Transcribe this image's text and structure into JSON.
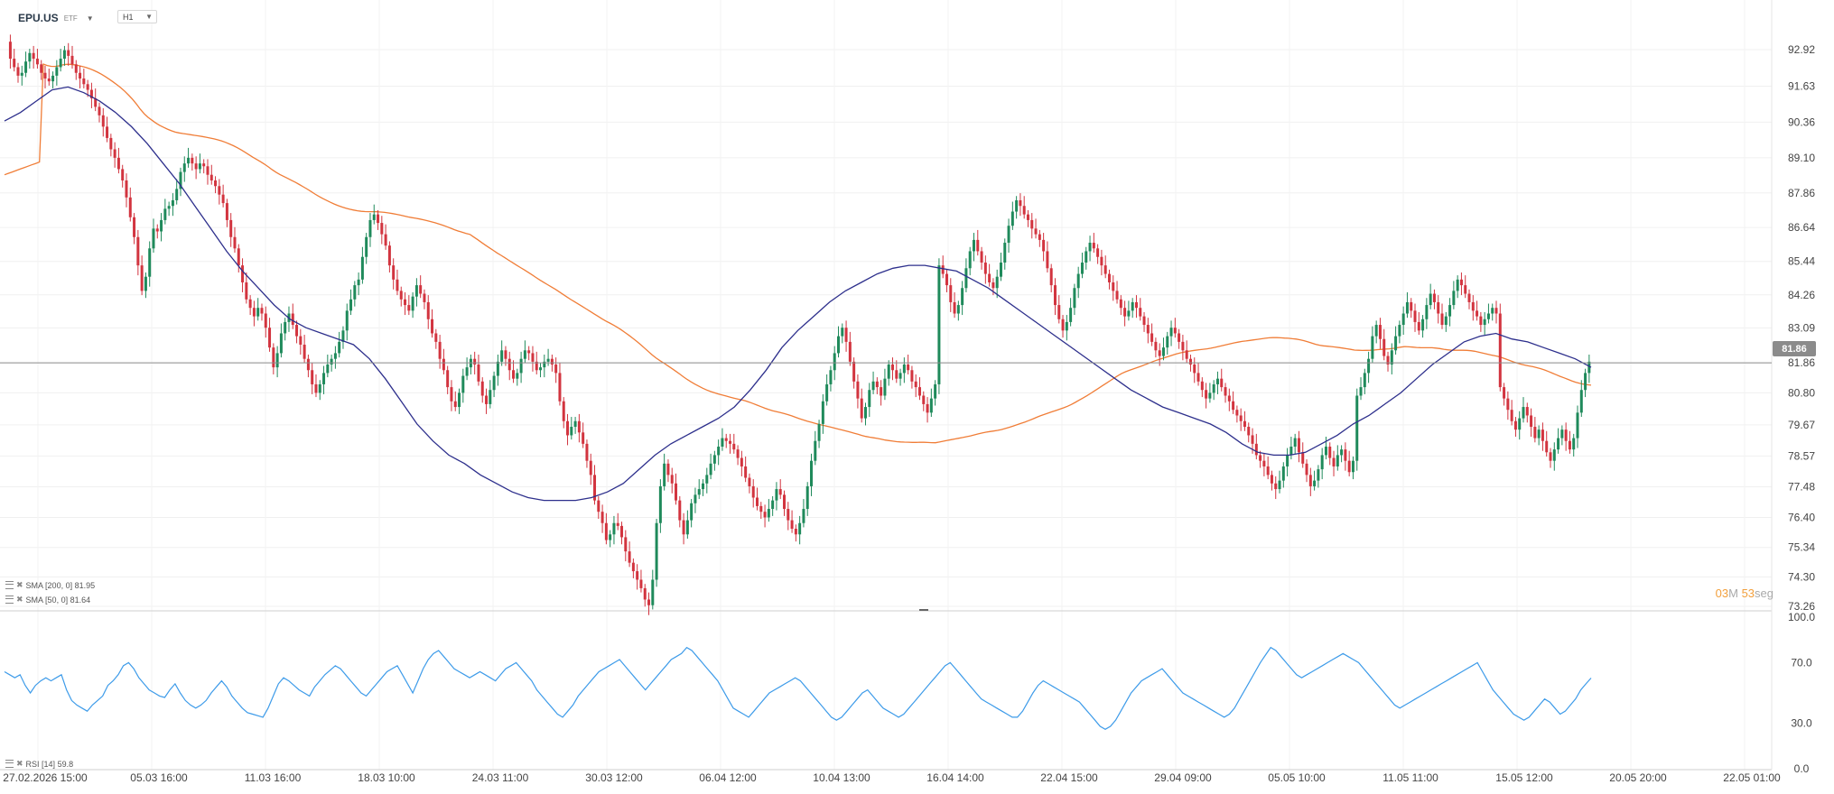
{
  "header": {
    "symbol": "EPU.US",
    "instrument_type": "ETF",
    "timeframe": "H1"
  },
  "indicators": {
    "sma200": "SMA [200, 0] 81.95",
    "sma50": "SMA [50, 0] 81.64",
    "rsi": "RSI [14] 59.8"
  },
  "countdown": {
    "minutes": "03",
    "minutes_unit": "M",
    "seconds": "53",
    "seconds_unit": "seg"
  },
  "colors": {
    "up": "#1f8a5b",
    "down": "#d2343f",
    "sma50": "#2d2f8c",
    "sma200": "#f07d37",
    "rsi": "#3d9be9",
    "last_price_line": "#8b8b8b"
  },
  "chart_data": [
    {
      "type": "candlestick",
      "title": "",
      "current_price": "81.86",
      "y_ticks": [
        "92.92",
        "91.63",
        "90.36",
        "89.10",
        "87.86",
        "86.64",
        "85.44",
        "84.26",
        "83.09",
        "81.86",
        "80.80",
        "79.67",
        "78.57",
        "77.48",
        "76.40",
        "75.34",
        "74.30",
        "73.26"
      ],
      "x_ticks": [
        "27.02.2026 15:00",
        "05.03 16:00",
        "11.03 16:00",
        "18.03 10:00",
        "24.03 11:00",
        "30.03 12:00",
        "06.04 12:00",
        "10.04 13:00",
        "16.04 14:00",
        "22.04 15:00",
        "29.04 09:00",
        "05.05 10:00",
        "11.05 11:00",
        "15.05 12:00",
        "20.05 20:00",
        "22.05 01:00"
      ],
      "ylim": [
        73.26,
        92.92
      ],
      "close": [
        93.2,
        92.6,
        92.3,
        92.0,
        92.1,
        92.5,
        92.8,
        92.6,
        92.4,
        92.1,
        91.9,
        91.8,
        92.0,
        92.3,
        92.6,
        92.9,
        92.7,
        92.4,
        92.1,
        91.9,
        91.7,
        91.5,
        91.2,
        90.9,
        90.6,
        90.2,
        89.8,
        89.4,
        89.1,
        88.7,
        88.3,
        87.7,
        87.0,
        86.3,
        85.3,
        84.4,
        84.9,
        85.9,
        86.6,
        86.5,
        86.9,
        87.3,
        87.4,
        87.6,
        88.0,
        88.6,
        88.9,
        89.1,
        88.9,
        88.7,
        88.9,
        88.8,
        88.5,
        88.3,
        88.1,
        87.8,
        87.5,
        86.9,
        86.3,
        85.9,
        85.3,
        84.7,
        84.1,
        83.8,
        83.5,
        83.8,
        83.6,
        83.1,
        82.4,
        81.7,
        82.2,
        82.9,
        83.3,
        83.6,
        83.2,
        82.8,
        82.5,
        82.0,
        81.6,
        81.1,
        80.8,
        81.1,
        81.5,
        81.8,
        82.0,
        82.2,
        82.6,
        83.0,
        83.7,
        84.1,
        84.6,
        84.8,
        85.6,
        86.3,
        86.9,
        87.1,
        86.8,
        86.4,
        86.0,
        85.3,
        84.8,
        84.4,
        84.1,
        83.9,
        83.7,
        84.2,
        84.6,
        84.3,
        84.0,
        83.4,
        82.9,
        82.6,
        82.0,
        81.6,
        81.0,
        80.5,
        80.3,
        80.8,
        81.4,
        81.7,
        82.0,
        81.8,
        81.2,
        80.7,
        80.4,
        80.9,
        81.4,
        81.9,
        82.3,
        82.0,
        81.6,
        81.3,
        81.5,
        82.0,
        82.3,
        82.2,
        81.9,
        81.6,
        81.7,
        81.9,
        82.0,
        81.8,
        81.5,
        80.5,
        79.8,
        79.3,
        79.6,
        79.8,
        79.4,
        79.0,
        78.4,
        77.9,
        77.0,
        76.6,
        76.2,
        75.6,
        75.8,
        76.2,
        76.1,
        75.7,
        75.2,
        74.8,
        74.5,
        74.2,
        73.9,
        73.5,
        73.3,
        74.2,
        76.2,
        77.5,
        78.3,
        77.9,
        77.6,
        77.0,
        76.3,
        75.8,
        76.3,
        76.9,
        77.2,
        77.4,
        77.6,
        77.9,
        78.3,
        78.6,
        78.9,
        79.2,
        79.1,
        79.0,
        78.8,
        78.5,
        78.2,
        77.8,
        77.5,
        77.1,
        76.8,
        76.6,
        76.4,
        76.7,
        77.0,
        77.4,
        77.2,
        76.7,
        76.3,
        76.0,
        75.8,
        76.2,
        76.7,
        77.5,
        78.4,
        79.1,
        79.7,
        80.5,
        81.1,
        81.6,
        82.2,
        82.8,
        83.1,
        82.6,
        81.9,
        81.2,
        80.6,
        79.9,
        80.3,
        80.9,
        81.2,
        81.0,
        80.7,
        81.3,
        81.8,
        81.6,
        81.3,
        81.5,
        81.8,
        81.6,
        81.2,
        81.0,
        80.7,
        80.4,
        80.1,
        80.6,
        81.1,
        85.3,
        85.0,
        84.6,
        84.0,
        83.6,
        83.9,
        84.5,
        85.2,
        85.8,
        86.2,
        85.8,
        85.4,
        85.0,
        84.7,
        84.5,
        84.9,
        85.4,
        86.1,
        86.7,
        87.2,
        87.6,
        87.4,
        87.1,
        86.9,
        86.6,
        86.4,
        86.2,
        85.8,
        85.2,
        84.6,
        83.9,
        83.4,
        83.0,
        83.3,
        83.8,
        84.5,
        85.0,
        85.4,
        85.8,
        86.1,
        85.9,
        85.6,
        85.3,
        85.0,
        84.7,
        84.4,
        84.1,
        83.8,
        83.5,
        83.7,
        84.0,
        83.8,
        83.5,
        83.2,
        82.9,
        82.6,
        82.3,
        82.1,
        82.4,
        82.8,
        83.1,
        82.9,
        82.6,
        82.3,
        82.0,
        81.8,
        81.5,
        81.2,
        80.9,
        80.6,
        80.8,
        81.1,
        81.3,
        81.0,
        80.7,
        80.5,
        80.2,
        80.0,
        79.8,
        79.6,
        79.3,
        79.0,
        78.6,
        78.4,
        78.2,
        77.9,
        77.6,
        77.4,
        77.7,
        78.2,
        78.6,
        78.9,
        79.2,
        78.7,
        78.3,
        77.9,
        77.5,
        77.7,
        78.1,
        78.6,
        78.9,
        78.5,
        78.2,
        78.6,
        78.8,
        78.4,
        78.0,
        78.4,
        80.7,
        81.0,
        81.5,
        82.0,
        82.8,
        83.2,
        82.7,
        82.1,
        81.8,
        82.3,
        82.8,
        83.2,
        83.6,
        84.0,
        83.7,
        83.3,
        83.0,
        83.4,
        83.9,
        84.3,
        84.0,
        83.6,
        83.2,
        83.5,
        83.9,
        84.4,
        84.8,
        84.6,
        84.3,
        84.0,
        83.7,
        83.5,
        83.2,
        83.4,
        83.6,
        83.8,
        83.6,
        81.0,
        80.6,
        80.2,
        79.8,
        79.5,
        79.9,
        80.3,
        80.0,
        79.6,
        79.2,
        79.5,
        79.1,
        78.7,
        78.4,
        78.8,
        79.2,
        79.5,
        79.1,
        78.8,
        79.2,
        80.1,
        80.9,
        81.5,
        81.9
      ],
      "sma50": [
        90.4,
        90.7,
        91.1,
        91.5,
        91.6,
        91.4,
        91.1,
        90.7,
        90.2,
        89.6,
        88.9,
        88.2,
        87.4,
        86.6,
        85.8,
        85.1,
        84.5,
        83.9,
        83.4,
        83.1,
        82.9,
        82.7,
        82.5,
        82.0,
        81.3,
        80.5,
        79.7,
        79.1,
        78.6,
        78.3,
        77.9,
        77.6,
        77.3,
        77.1,
        77.0,
        77.0,
        77.0,
        77.1,
        77.3,
        77.6,
        78.1,
        78.6,
        79.0,
        79.3,
        79.6,
        79.9,
        80.3,
        80.9,
        81.6,
        82.4,
        83.0,
        83.5,
        84.0,
        84.4,
        84.7,
        85.0,
        85.2,
        85.3,
        85.3,
        85.2,
        85.1,
        84.8,
        84.5,
        84.1,
        83.7,
        83.3,
        82.9,
        82.5,
        82.1,
        81.7,
        81.3,
        80.9,
        80.6,
        80.3,
        80.1,
        79.9,
        79.7,
        79.4,
        79.0,
        78.7,
        78.6,
        78.6,
        78.7,
        79.0,
        79.3,
        79.7,
        80.0,
        80.4,
        80.8,
        81.3,
        81.8,
        82.2,
        82.6,
        82.8,
        82.9,
        82.7,
        82.6,
        82.4,
        82.2,
        82.0,
        81.7
      ]
    },
    {
      "type": "line",
      "title": "",
      "series_name": "RSI [14]",
      "y_ticks": [
        "100.0",
        "70.0",
        "30.0",
        "0.0"
      ],
      "ylim": [
        0,
        100
      ],
      "values": [
        64,
        62,
        60,
        62,
        55,
        50,
        55,
        58,
        60,
        58,
        60,
        62,
        52,
        45,
        42,
        40,
        38,
        42,
        45,
        48,
        55,
        58,
        62,
        68,
        70,
        66,
        60,
        56,
        52,
        50,
        48,
        47,
        52,
        56,
        50,
        45,
        42,
        40,
        42,
        45,
        50,
        54,
        58,
        54,
        48,
        44,
        40,
        37,
        36,
        35,
        34,
        40,
        48,
        56,
        60,
        58,
        55,
        52,
        50,
        48,
        54,
        58,
        62,
        65,
        68,
        66,
        62,
        58,
        54,
        50,
        48,
        52,
        56,
        60,
        64,
        66,
        68,
        62,
        56,
        50,
        58,
        66,
        72,
        76,
        78,
        74,
        70,
        66,
        64,
        62,
        60,
        62,
        64,
        62,
        60,
        58,
        62,
        66,
        68,
        70,
        66,
        62,
        58,
        52,
        48,
        44,
        40,
        36,
        34,
        38,
        42,
        48,
        52,
        56,
        60,
        64,
        66,
        68,
        70,
        72,
        68,
        64,
        60,
        56,
        52,
        56,
        60,
        64,
        68,
        72,
        74,
        76,
        80,
        78,
        74,
        70,
        66,
        62,
        58,
        52,
        46,
        40,
        38,
        36,
        34,
        38,
        42,
        46,
        50,
        52,
        54,
        56,
        58,
        60,
        58,
        54,
        50,
        46,
        42,
        38,
        34,
        32,
        34,
        38,
        42,
        46,
        50,
        52,
        48,
        44,
        40,
        38,
        36,
        34,
        36,
        40,
        44,
        48,
        52,
        56,
        60,
        64,
        68,
        70,
        66,
        62,
        58,
        54,
        50,
        46,
        44,
        42,
        40,
        38,
        36,
        34,
        34,
        38,
        44,
        50,
        55,
        58,
        56,
        54,
        52,
        50,
        48,
        46,
        44,
        40,
        36,
        32,
        28,
        26,
        28,
        32,
        38,
        44,
        50,
        54,
        58,
        60,
        62,
        64,
        66,
        62,
        58,
        54,
        50,
        48,
        46,
        44,
        42,
        40,
        38,
        36,
        34,
        36,
        40,
        46,
        52,
        58,
        64,
        70,
        75,
        80,
        78,
        74,
        70,
        66,
        62,
        60,
        62,
        64,
        66,
        68,
        70,
        72,
        74,
        76,
        74,
        72,
        70,
        66,
        62,
        58,
        54,
        50,
        46,
        42,
        40,
        42,
        44,
        46,
        48,
        50,
        52,
        54,
        56,
        58,
        60,
        62,
        64,
        66,
        68,
        70,
        64,
        58,
        52,
        48,
        44,
        40,
        36,
        34,
        32,
        34,
        38,
        42,
        46,
        44,
        40,
        36,
        38,
        42,
        46,
        52,
        56,
        59.8
      ]
    }
  ]
}
